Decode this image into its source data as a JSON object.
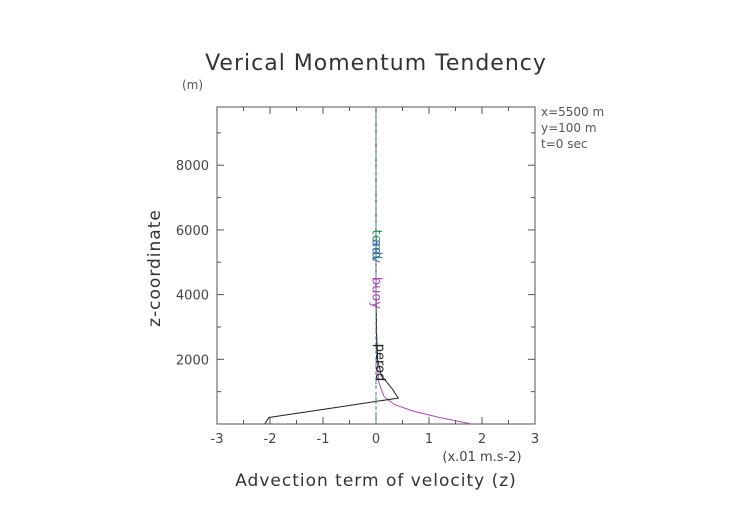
{
  "chart_data": {
    "type": "line",
    "title": "Verical Momentum Tendency",
    "xlabel": "Advection term of velocity (z)",
    "ylabel": "z-coordinate",
    "y_unit": "(m)",
    "x_scale_note": "(x.01 m.s-2)",
    "xlim": [
      -3,
      3
    ],
    "ylim": [
      0,
      9800
    ],
    "x_ticks": [
      "-3",
      "-2",
      "-1",
      "0",
      "1",
      "2",
      "3"
    ],
    "y_ticks": [
      "2000",
      "4000",
      "6000",
      "8000"
    ],
    "info_lines": [
      "x=5500 m",
      "y=100 m",
      "t=0 sec"
    ],
    "series": [
      {
        "name": "buoy",
        "color": "#b044c0",
        "x": [
          1.8,
          1.2,
          0.7,
          0.35,
          0.15,
          0.05,
          0.02,
          0.0,
          0.0
        ],
        "y": [
          0,
          200,
          400,
          600,
          850,
          1300,
          2000,
          4000,
          9800
        ]
      },
      {
        "name": "perod",
        "color": "#222222",
        "x": [
          -2.1,
          -2.02,
          -0.6,
          0.42,
          0.3,
          0.1,
          0.03,
          0.01,
          0.0,
          0.0
        ],
        "y": [
          0,
          200,
          550,
          800,
          1100,
          1500,
          2000,
          2800,
          4000,
          9800
        ]
      },
      {
        "name": "tend",
        "color": "#30a050",
        "x": [
          0.0,
          0.0
        ],
        "y": [
          0,
          9800
        ]
      },
      {
        "name": "adv",
        "color": "#4466cc",
        "x": [
          0.0,
          0.0
        ],
        "y": [
          0,
          9800
        ]
      }
    ]
  }
}
